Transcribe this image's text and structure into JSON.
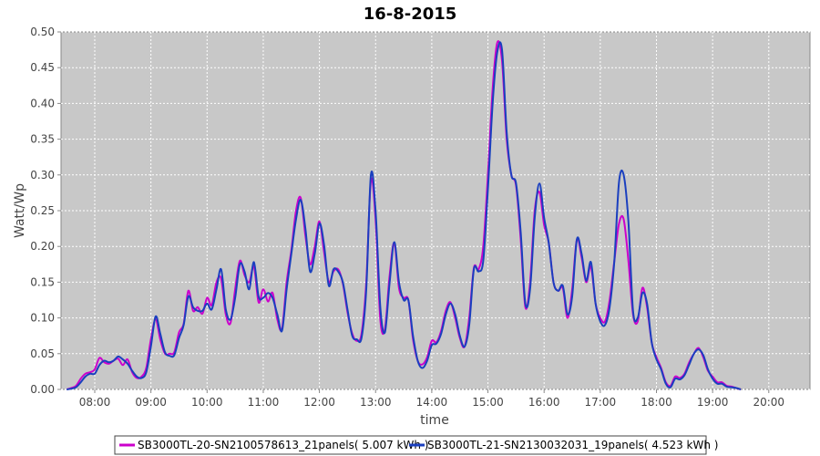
{
  "chart_data": {
    "type": "line",
    "title": "16-8-2015",
    "xlabel": "time",
    "ylabel": "Watt/Wp",
    "xlim": [
      "07:24",
      "20:44"
    ],
    "ylim": [
      0,
      0.5
    ],
    "x_ticks": [
      "08:00",
      "09:00",
      "10:00",
      "11:00",
      "12:00",
      "13:00",
      "14:00",
      "15:00",
      "16:00",
      "17:00",
      "18:00",
      "19:00",
      "20:00"
    ],
    "y_ticks": [
      "0.00",
      "0.05",
      "0.10",
      "0.15",
      "0.20",
      "0.25",
      "0.30",
      "0.35",
      "0.40",
      "0.45",
      "0.50"
    ],
    "grid": true,
    "plot_background": "#c8c8c8",
    "gridline_color": "#ffffff",
    "legend_position": "bottom",
    "series": [
      {
        "name": "SB3000TL-20-SN2100578613_21panels( 5.007 kWh )",
        "color": "#cc00cc",
        "points": [
          [
            "07:30",
            0.0
          ],
          [
            "07:35",
            0.002
          ],
          [
            "07:40",
            0.005
          ],
          [
            "07:45",
            0.015
          ],
          [
            "07:50",
            0.022
          ],
          [
            "07:55",
            0.024
          ],
          [
            "08:00",
            0.028
          ],
          [
            "08:05",
            0.044
          ],
          [
            "08:10",
            0.038
          ],
          [
            "08:15",
            0.036
          ],
          [
            "08:20",
            0.04
          ],
          [
            "08:25",
            0.043
          ],
          [
            "08:30",
            0.034
          ],
          [
            "08:35",
            0.042
          ],
          [
            "08:40",
            0.024
          ],
          [
            "08:45",
            0.016
          ],
          [
            "08:50",
            0.018
          ],
          [
            "08:55",
            0.03
          ],
          [
            "09:00",
            0.07
          ],
          [
            "09:05",
            0.098
          ],
          [
            "09:10",
            0.07
          ],
          [
            "09:15",
            0.05
          ],
          [
            "09:20",
            0.05
          ],
          [
            "09:25",
            0.052
          ],
          [
            "09:30",
            0.08
          ],
          [
            "09:35",
            0.092
          ],
          [
            "09:40",
            0.138
          ],
          [
            "09:45",
            0.11
          ],
          [
            "09:50",
            0.115
          ],
          [
            "09:55",
            0.106
          ],
          [
            "10:00",
            0.128
          ],
          [
            "10:05",
            0.118
          ],
          [
            "10:10",
            0.15
          ],
          [
            "10:15",
            0.155
          ],
          [
            "10:20",
            0.105
          ],
          [
            "10:25",
            0.093
          ],
          [
            "10:30",
            0.14
          ],
          [
            "10:35",
            0.18
          ],
          [
            "10:40",
            0.16
          ],
          [
            "10:45",
            0.15
          ],
          [
            "10:50",
            0.172
          ],
          [
            "10:55",
            0.122
          ],
          [
            "11:00",
            0.14
          ],
          [
            "11:05",
            0.123
          ],
          [
            "11:10",
            0.135
          ],
          [
            "11:15",
            0.098
          ],
          [
            "11:20",
            0.085
          ],
          [
            "11:25",
            0.15
          ],
          [
            "11:30",
            0.195
          ],
          [
            "11:35",
            0.25
          ],
          [
            "11:40",
            0.268
          ],
          [
            "11:45",
            0.215
          ],
          [
            "11:50",
            0.175
          ],
          [
            "11:55",
            0.2
          ],
          [
            "12:00",
            0.235
          ],
          [
            "12:05",
            0.192
          ],
          [
            "12:10",
            0.15
          ],
          [
            "12:15",
            0.165
          ],
          [
            "12:20",
            0.168
          ],
          [
            "12:25",
            0.148
          ],
          [
            "12:30",
            0.108
          ],
          [
            "12:35",
            0.078
          ],
          [
            "12:40",
            0.068
          ],
          [
            "12:45",
            0.078
          ],
          [
            "12:50",
            0.15
          ],
          [
            "12:55",
            0.292
          ],
          [
            "13:00",
            0.238
          ],
          [
            "13:05",
            0.098
          ],
          [
            "13:10",
            0.085
          ],
          [
            "13:15",
            0.16
          ],
          [
            "13:20",
            0.205
          ],
          [
            "13:25",
            0.142
          ],
          [
            "13:30",
            0.128
          ],
          [
            "13:35",
            0.125
          ],
          [
            "13:40",
            0.07
          ],
          [
            "13:45",
            0.04
          ],
          [
            "13:50",
            0.035
          ],
          [
            "13:55",
            0.045
          ],
          [
            "14:00",
            0.068
          ],
          [
            "14:05",
            0.066
          ],
          [
            "14:10",
            0.082
          ],
          [
            "14:15",
            0.11
          ],
          [
            "14:20",
            0.122
          ],
          [
            "14:25",
            0.1
          ],
          [
            "14:30",
            0.072
          ],
          [
            "14:35",
            0.06
          ],
          [
            "14:40",
            0.1
          ],
          [
            "14:45",
            0.17
          ],
          [
            "14:50",
            0.168
          ],
          [
            "14:55",
            0.2
          ],
          [
            "15:00",
            0.3
          ],
          [
            "15:05",
            0.42
          ],
          [
            "15:10",
            0.485
          ],
          [
            "15:15",
            0.46
          ],
          [
            "15:20",
            0.35
          ],
          [
            "15:25",
            0.3
          ],
          [
            "15:30",
            0.285
          ],
          [
            "15:35",
            0.21
          ],
          [
            "15:40",
            0.115
          ],
          [
            "15:45",
            0.15
          ],
          [
            "15:50",
            0.25
          ],
          [
            "15:55",
            0.276
          ],
          [
            "16:00",
            0.23
          ],
          [
            "16:05",
            0.205
          ],
          [
            "16:10",
            0.15
          ],
          [
            "16:15",
            0.138
          ],
          [
            "16:20",
            0.142
          ],
          [
            "16:25",
            0.1
          ],
          [
            "16:30",
            0.14
          ],
          [
            "16:35",
            0.21
          ],
          [
            "16:40",
            0.185
          ],
          [
            "16:45",
            0.15
          ],
          [
            "16:50",
            0.172
          ],
          [
            "16:55",
            0.12
          ],
          [
            "17:00",
            0.1
          ],
          [
            "17:05",
            0.095
          ],
          [
            "17:10",
            0.125
          ],
          [
            "17:15",
            0.18
          ],
          [
            "17:20",
            0.232
          ],
          [
            "17:25",
            0.238
          ],
          [
            "17:30",
            0.18
          ],
          [
            "17:35",
            0.105
          ],
          [
            "17:40",
            0.095
          ],
          [
            "17:45",
            0.142
          ],
          [
            "17:50",
            0.115
          ],
          [
            "17:55",
            0.065
          ],
          [
            "18:00",
            0.045
          ],
          [
            "18:05",
            0.03
          ],
          [
            "18:10",
            0.01
          ],
          [
            "18:15",
            0.005
          ],
          [
            "18:20",
            0.018
          ],
          [
            "18:25",
            0.016
          ],
          [
            "18:30",
            0.022
          ],
          [
            "18:35",
            0.038
          ],
          [
            "18:40",
            0.05
          ],
          [
            "18:45",
            0.058
          ],
          [
            "18:50",
            0.045
          ],
          [
            "18:55",
            0.026
          ],
          [
            "19:00",
            0.018
          ],
          [
            "19:05",
            0.01
          ],
          [
            "19:10",
            0.01
          ],
          [
            "19:15",
            0.005
          ],
          [
            "19:20",
            0.004
          ],
          [
            "19:25",
            0.002
          ],
          [
            "19:30",
            0.0
          ]
        ]
      },
      {
        "name": "SB3000TL-21-SN2130032031_19panels( 4.523 kWh )",
        "color": "#1a3fbf",
        "points": [
          [
            "07:30",
            0.0
          ],
          [
            "07:35",
            0.001
          ],
          [
            "07:40",
            0.003
          ],
          [
            "07:45",
            0.01
          ],
          [
            "07:50",
            0.018
          ],
          [
            "07:55",
            0.022
          ],
          [
            "08:00",
            0.022
          ],
          [
            "08:05",
            0.034
          ],
          [
            "08:10",
            0.04
          ],
          [
            "08:15",
            0.038
          ],
          [
            "08:20",
            0.04
          ],
          [
            "08:25",
            0.046
          ],
          [
            "08:30",
            0.042
          ],
          [
            "08:35",
            0.036
          ],
          [
            "08:40",
            0.026
          ],
          [
            "08:45",
            0.018
          ],
          [
            "08:50",
            0.016
          ],
          [
            "08:55",
            0.024
          ],
          [
            "09:00",
            0.06
          ],
          [
            "09:05",
            0.102
          ],
          [
            "09:10",
            0.078
          ],
          [
            "09:15",
            0.052
          ],
          [
            "09:20",
            0.047
          ],
          [
            "09:25",
            0.048
          ],
          [
            "09:30",
            0.072
          ],
          [
            "09:35",
            0.09
          ],
          [
            "09:40",
            0.13
          ],
          [
            "09:45",
            0.115
          ],
          [
            "09:50",
            0.11
          ],
          [
            "09:55",
            0.11
          ],
          [
            "10:00",
            0.12
          ],
          [
            "10:05",
            0.112
          ],
          [
            "10:10",
            0.14
          ],
          [
            "10:15",
            0.168
          ],
          [
            "10:20",
            0.112
          ],
          [
            "10:25",
            0.098
          ],
          [
            "10:30",
            0.128
          ],
          [
            "10:35",
            0.175
          ],
          [
            "10:40",
            0.165
          ],
          [
            "10:45",
            0.14
          ],
          [
            "10:50",
            0.178
          ],
          [
            "10:55",
            0.13
          ],
          [
            "11:00",
            0.128
          ],
          [
            "11:05",
            0.135
          ],
          [
            "11:10",
            0.128
          ],
          [
            "11:15",
            0.105
          ],
          [
            "11:20",
            0.082
          ],
          [
            "11:25",
            0.14
          ],
          [
            "11:30",
            0.19
          ],
          [
            "11:35",
            0.238
          ],
          [
            "11:40",
            0.265
          ],
          [
            "11:45",
            0.225
          ],
          [
            "11:50",
            0.165
          ],
          [
            "11:55",
            0.19
          ],
          [
            "12:00",
            0.232
          ],
          [
            "12:05",
            0.202
          ],
          [
            "12:10",
            0.145
          ],
          [
            "12:15",
            0.168
          ],
          [
            "12:20",
            0.165
          ],
          [
            "12:25",
            0.15
          ],
          [
            "12:30",
            0.112
          ],
          [
            "12:35",
            0.075
          ],
          [
            "12:40",
            0.07
          ],
          [
            "12:45",
            0.072
          ],
          [
            "12:50",
            0.14
          ],
          [
            "12:55",
            0.3
          ],
          [
            "13:00",
            0.25
          ],
          [
            "13:05",
            0.115
          ],
          [
            "13:10",
            0.08
          ],
          [
            "13:15",
            0.15
          ],
          [
            "13:20",
            0.206
          ],
          [
            "13:25",
            0.15
          ],
          [
            "13:30",
            0.125
          ],
          [
            "13:35",
            0.125
          ],
          [
            "13:40",
            0.075
          ],
          [
            "13:45",
            0.04
          ],
          [
            "13:50",
            0.03
          ],
          [
            "13:55",
            0.04
          ],
          [
            "14:00",
            0.062
          ],
          [
            "14:05",
            0.064
          ],
          [
            "14:10",
            0.078
          ],
          [
            "14:15",
            0.105
          ],
          [
            "14:20",
            0.12
          ],
          [
            "14:25",
            0.105
          ],
          [
            "14:30",
            0.075
          ],
          [
            "14:35",
            0.06
          ],
          [
            "14:40",
            0.09
          ],
          [
            "14:45",
            0.168
          ],
          [
            "14:50",
            0.165
          ],
          [
            "14:55",
            0.18
          ],
          [
            "15:00",
            0.28
          ],
          [
            "15:05",
            0.4
          ],
          [
            "15:10",
            0.472
          ],
          [
            "15:15",
            0.475
          ],
          [
            "15:20",
            0.36
          ],
          [
            "15:25",
            0.3
          ],
          [
            "15:30",
            0.288
          ],
          [
            "15:35",
            0.22
          ],
          [
            "15:40",
            0.12
          ],
          [
            "15:45",
            0.14
          ],
          [
            "15:50",
            0.24
          ],
          [
            "15:55",
            0.288
          ],
          [
            "16:00",
            0.24
          ],
          [
            "16:05",
            0.205
          ],
          [
            "16:10",
            0.15
          ],
          [
            "16:15",
            0.138
          ],
          [
            "16:20",
            0.145
          ],
          [
            "16:25",
            0.105
          ],
          [
            "16:30",
            0.13
          ],
          [
            "16:35",
            0.21
          ],
          [
            "16:40",
            0.19
          ],
          [
            "16:45",
            0.152
          ],
          [
            "16:50",
            0.178
          ],
          [
            "16:55",
            0.12
          ],
          [
            "17:00",
            0.095
          ],
          [
            "17:05",
            0.09
          ],
          [
            "17:10",
            0.115
          ],
          [
            "17:15",
            0.18
          ],
          [
            "17:20",
            0.29
          ],
          [
            "17:25",
            0.3
          ],
          [
            "17:30",
            0.235
          ],
          [
            "17:35",
            0.11
          ],
          [
            "17:40",
            0.1
          ],
          [
            "17:45",
            0.135
          ],
          [
            "17:50",
            0.12
          ],
          [
            "17:55",
            0.065
          ],
          [
            "18:00",
            0.042
          ],
          [
            "18:05",
            0.028
          ],
          [
            "18:10",
            0.008
          ],
          [
            "18:15",
            0.003
          ],
          [
            "18:20",
            0.015
          ],
          [
            "18:25",
            0.014
          ],
          [
            "18:30",
            0.02
          ],
          [
            "18:35",
            0.035
          ],
          [
            "18:40",
            0.05
          ],
          [
            "18:45",
            0.056
          ],
          [
            "18:50",
            0.048
          ],
          [
            "18:55",
            0.028
          ],
          [
            "19:00",
            0.015
          ],
          [
            "19:05",
            0.008
          ],
          [
            "19:10",
            0.008
          ],
          [
            "19:15",
            0.004
          ],
          [
            "19:20",
            0.003
          ],
          [
            "19:25",
            0.002
          ],
          [
            "19:30",
            0.0
          ]
        ]
      }
    ]
  }
}
